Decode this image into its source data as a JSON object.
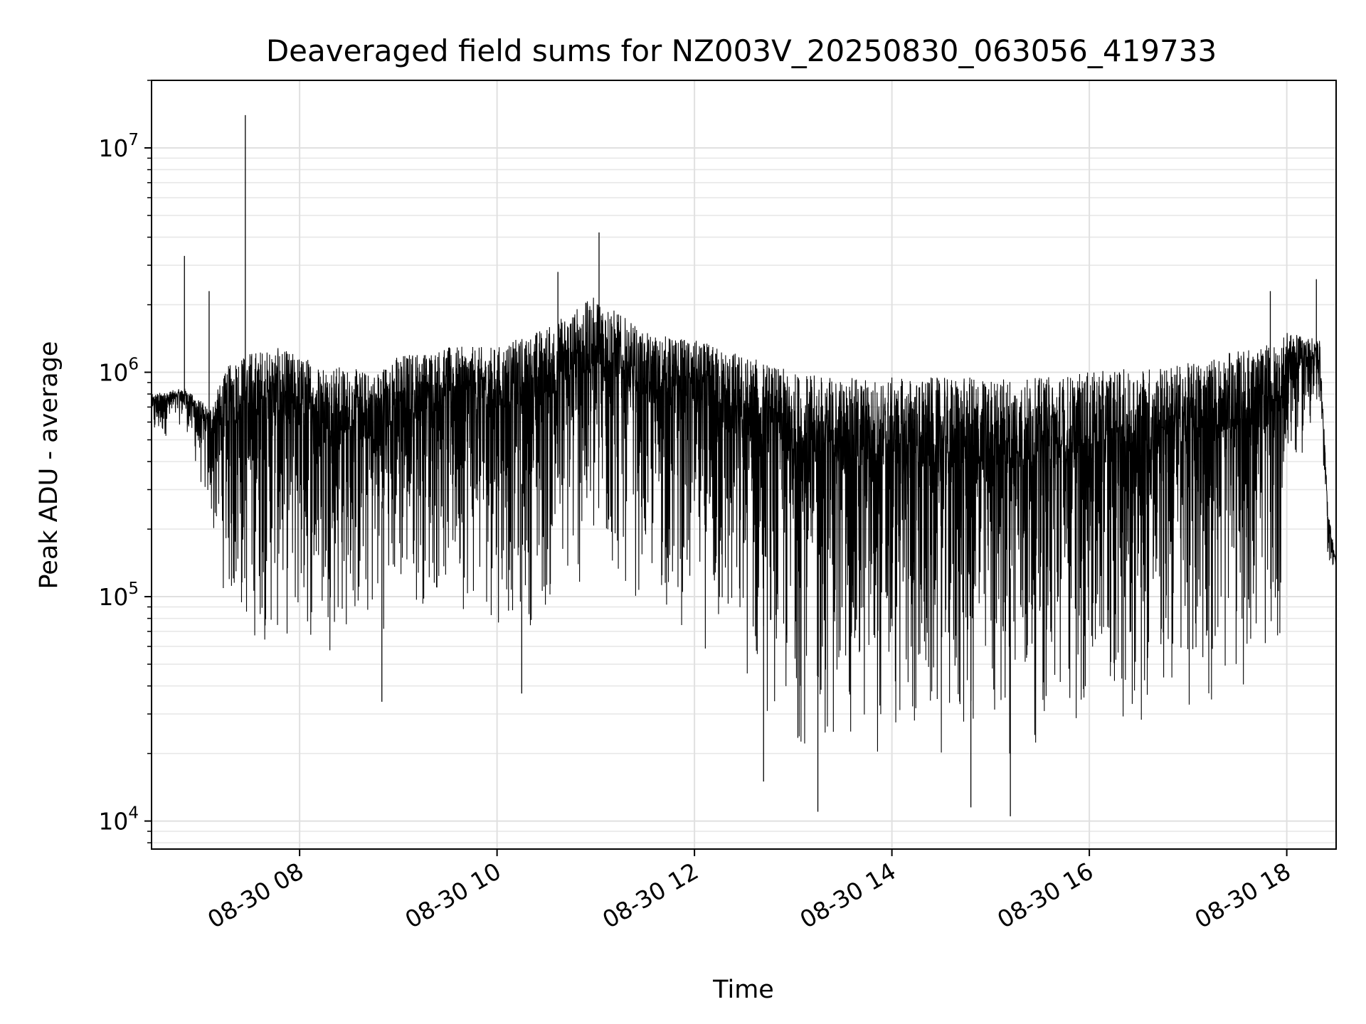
{
  "chart_data": {
    "type": "line",
    "title": "Deaveraged field sums for NZ003V_20250830_063056_419733",
    "xlabel": "Time",
    "ylabel": "Peak ADU - average",
    "yscale": "log",
    "ylim": [
      7500,
      20000000
    ],
    "xlim": [
      "2025-08-30 06:30",
      "2025-08-30 18:30"
    ],
    "grid": true,
    "line_color": "#000000",
    "x_ticks": [
      {
        "value": "2025-08-30 08:00",
        "label": "08-30 08"
      },
      {
        "value": "2025-08-30 10:00",
        "label": "08-30 10"
      },
      {
        "value": "2025-08-30 12:00",
        "label": "08-30 12"
      },
      {
        "value": "2025-08-30 14:00",
        "label": "08-30 14"
      },
      {
        "value": "2025-08-30 16:00",
        "label": "08-30 16"
      },
      {
        "value": "2025-08-30 18:00",
        "label": "08-30 18"
      }
    ],
    "y_ticks": [
      {
        "value": 10000,
        "base": "10",
        "exp": "4"
      },
      {
        "value": 100000,
        "base": "10",
        "exp": "5"
      },
      {
        "value": 1000000,
        "base": "10",
        "exp": "6"
      },
      {
        "value": 10000000,
        "base": "10",
        "exp": "7"
      }
    ],
    "envelope": [
      {
        "t": "2025-08-30 06:30",
        "upper": 800000,
        "lower": 450000
      },
      {
        "t": "2025-08-30 06:50",
        "upper": 850000,
        "lower": 600000
      },
      {
        "t": "2025-08-30 07:05",
        "upper": 700000,
        "lower": 200000
      },
      {
        "t": "2025-08-30 07:20",
        "upper": 1200000,
        "lower": 60000
      },
      {
        "t": "2025-08-30 07:45",
        "upper": 1300000,
        "lower": 55000
      },
      {
        "t": "2025-08-30 08:15",
        "upper": 1100000,
        "lower": 55000
      },
      {
        "t": "2025-08-30 08:45",
        "upper": 1000000,
        "lower": 60000
      },
      {
        "t": "2025-08-30 09:00",
        "upper": 1200000,
        "lower": 80000
      },
      {
        "t": "2025-08-30 09:30",
        "upper": 1300000,
        "lower": 90000
      },
      {
        "t": "2025-08-30 10:00",
        "upper": 1300000,
        "lower": 70000
      },
      {
        "t": "2025-08-30 10:30",
        "upper": 1600000,
        "lower": 70000
      },
      {
        "t": "2025-08-30 11:00",
        "upper": 2200000,
        "lower": 100000
      },
      {
        "t": "2025-08-30 11:30",
        "upper": 1500000,
        "lower": 90000
      },
      {
        "t": "2025-08-30 12:00",
        "upper": 1400000,
        "lower": 60000
      },
      {
        "t": "2025-08-30 12:30",
        "upper": 1200000,
        "lower": 35000
      },
      {
        "t": "2025-08-30 13:00",
        "upper": 1000000,
        "lower": 20000
      },
      {
        "t": "2025-08-30 13:30",
        "upper": 950000,
        "lower": 18000
      },
      {
        "t": "2025-08-30 14:00",
        "upper": 950000,
        "lower": 17000
      },
      {
        "t": "2025-08-30 14:30",
        "upper": 950000,
        "lower": 17000
      },
      {
        "t": "2025-08-30 15:00",
        "upper": 950000,
        "lower": 18000
      },
      {
        "t": "2025-08-30 15:30",
        "upper": 950000,
        "lower": 20000
      },
      {
        "t": "2025-08-30 16:00",
        "upper": 1000000,
        "lower": 22000
      },
      {
        "t": "2025-08-30 16:30",
        "upper": 1050000,
        "lower": 25000
      },
      {
        "t": "2025-08-30 17:00",
        "upper": 1100000,
        "lower": 28000
      },
      {
        "t": "2025-08-30 17:30",
        "upper": 1250000,
        "lower": 35000
      },
      {
        "t": "2025-08-30 17:55",
        "upper": 1350000,
        "lower": 45000
      },
      {
        "t": "2025-08-30 18:00",
        "upper": 1500000,
        "lower": 300000
      },
      {
        "t": "2025-08-30 18:20",
        "upper": 1400000,
        "lower": 600000
      },
      {
        "t": "2025-08-30 18:25",
        "upper": 250000,
        "lower": 140000
      },
      {
        "t": "2025-08-30 18:30",
        "upper": 140000,
        "lower": 130000
      }
    ],
    "spikes": [
      {
        "t": "2025-08-30 06:50",
        "value": 3300000
      },
      {
        "t": "2025-08-30 07:05",
        "value": 2300000
      },
      {
        "t": "2025-08-30 07:27",
        "value": 14000000
      },
      {
        "t": "2025-08-30 08:50",
        "value": 34000
      },
      {
        "t": "2025-08-30 10:15",
        "value": 37000
      },
      {
        "t": "2025-08-30 10:37",
        "value": 2800000
      },
      {
        "t": "2025-08-30 11:02",
        "value": 4200000
      },
      {
        "t": "2025-08-30 12:42",
        "value": 15000
      },
      {
        "t": "2025-08-30 13:15",
        "value": 11000
      },
      {
        "t": "2025-08-30 14:48",
        "value": 11500
      },
      {
        "t": "2025-08-30 15:12",
        "value": 10500
      },
      {
        "t": "2025-08-30 17:50",
        "value": 2300000
      },
      {
        "t": "2025-08-30 18:18",
        "value": 2600000
      }
    ]
  }
}
